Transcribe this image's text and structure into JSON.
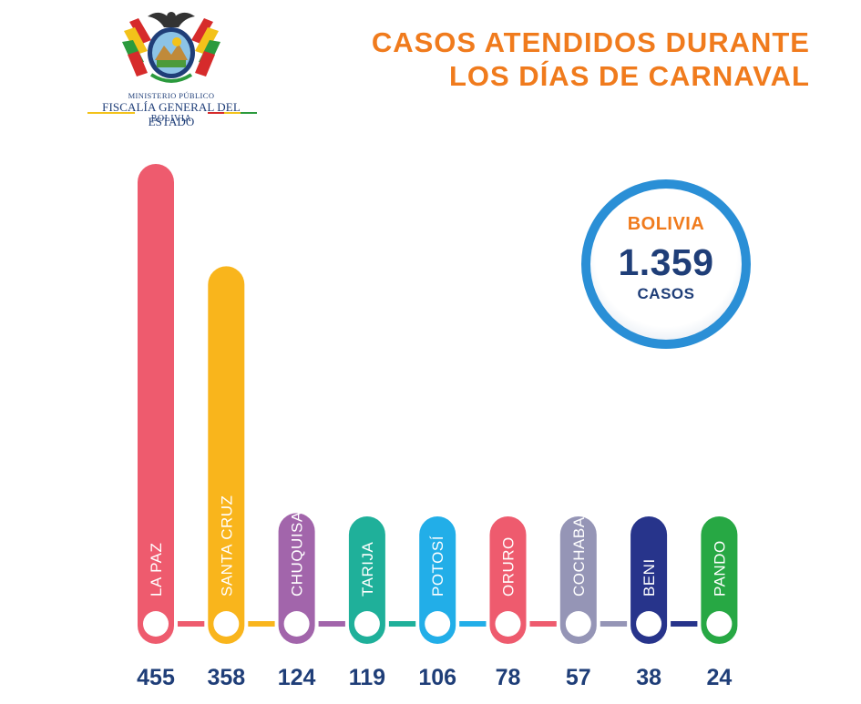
{
  "header": {
    "org_line1": "MINISTERIO PÚBLICO",
    "org_line2": "FISCALÍA GENERAL DEL ESTADO",
    "org_line3": "BOLIVIA",
    "logo_icon": "coat-of-arms-icon",
    "title_line1": "CASOS ATENDIDOS DURANTE",
    "title_line2": "LOS DÍAS DE CARNAVAL"
  },
  "total_badge": {
    "country": "BOLIVIA",
    "total": "1.359",
    "unit": "CASOS"
  },
  "colors": {
    "title": "#f07b1d",
    "numbers": "#1f3e78",
    "badge_ring": "#2a8fd6"
  },
  "chart_data": {
    "type": "bar",
    "title": "CASOS ATENDIDOS DURANTE LOS DÍAS DE CARNAVAL",
    "categories": [
      "LA PAZ",
      "SANTA CRUZ",
      "CHUQUISACA",
      "TARIJA",
      "POTOSÍ",
      "ORURO",
      "COCHABAMBA",
      "BENI",
      "PANDO"
    ],
    "values": [
      455,
      358,
      124,
      119,
      106,
      78,
      57,
      38,
      24
    ],
    "colors": [
      "#ee5b6e",
      "#f9b51c",
      "#a265ab",
      "#1fb09a",
      "#22aee8",
      "#ee5b6e",
      "#9595b6",
      "#27348b",
      "#27a844"
    ],
    "orientation": "vertical",
    "grid": false,
    "legend": "none"
  }
}
